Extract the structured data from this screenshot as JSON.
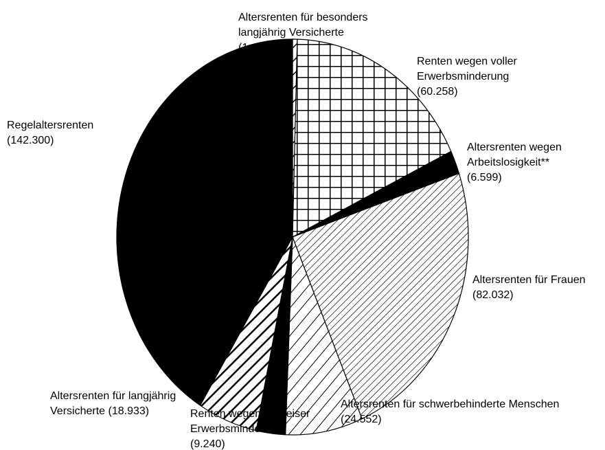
{
  "chart_data": {
    "type": "pie",
    "categories": [
      "Altersrenten für besonders langjährig Versicherte",
      "Renten wegen voller Erwerbsminderung",
      "Altersrenten wegen Arbeitslosigkeit**",
      "Altersrenten für Frauen",
      "Altersrenten für schwerbehinderte Menschen",
      "Renten wegen teilweiser Erwerbsminderung",
      "Altersrenten für langjährig Versicherte",
      "Regelaltersrenten"
    ],
    "values": [
      1490,
      60258,
      6599,
      82032,
      24552,
      9240,
      18933,
      142300
    ],
    "value_labels": [
      "(1.490)",
      "(60.258)",
      "(6.599)",
      "(82.032)",
      "(24.552)",
      "(9.240)",
      "(18.933)",
      "(142.300)"
    ],
    "colors": [
      "#000000",
      "#000000",
      "#000000",
      "#000000",
      "#000000",
      "#000000",
      "#000000",
      "#000000"
    ],
    "patterns": [
      "sparse-diagonal",
      "grid",
      "solid",
      "fine-diagonal",
      "wide-diagonal",
      "solid",
      "thick-diagonal",
      "solid"
    ]
  }
}
